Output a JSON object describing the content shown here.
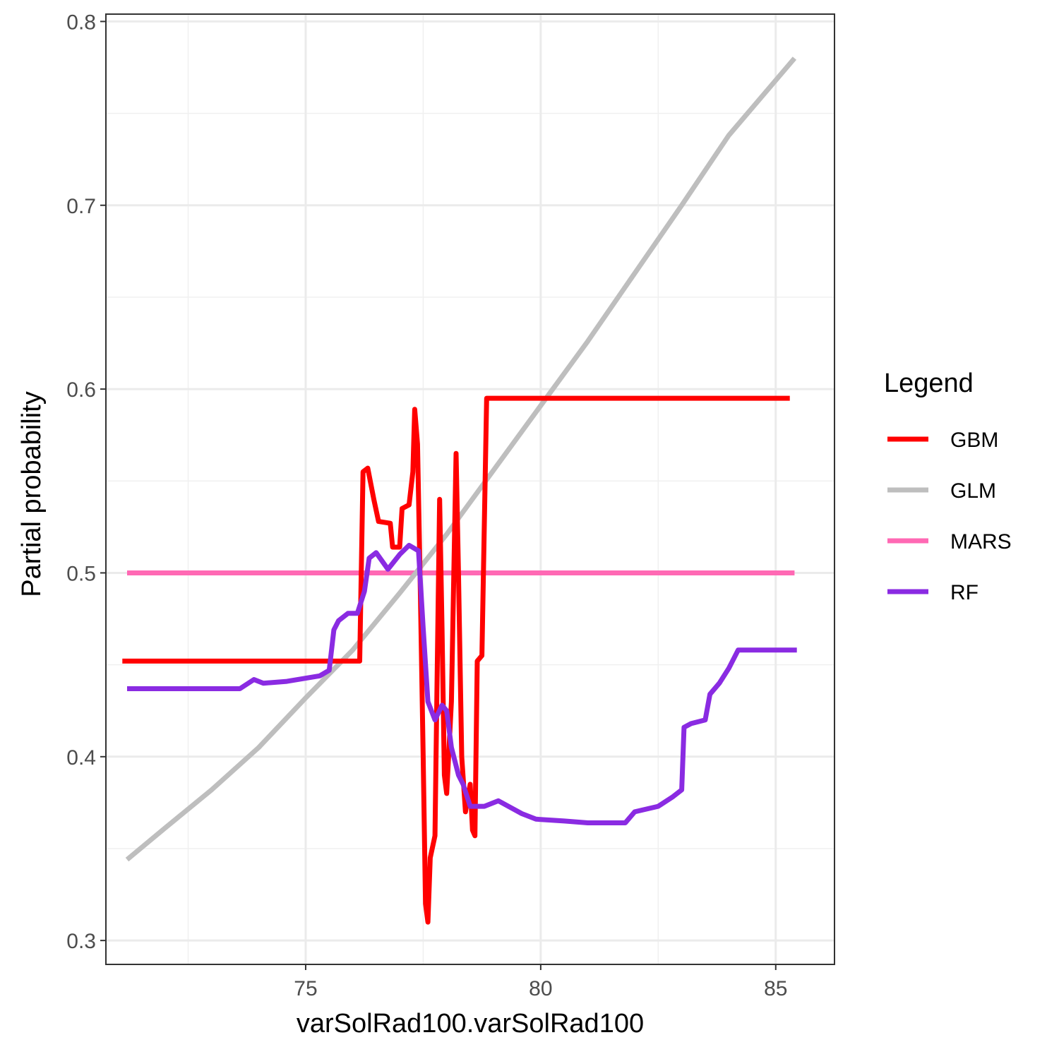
{
  "chart_data": {
    "type": "line",
    "title": "",
    "xlabel": "varSolRad100.varSolRad100",
    "ylabel": "Partial probability",
    "xlim": [
      70.75,
      86.25
    ],
    "ylim": [
      0.287,
      0.804
    ],
    "x_ticks": [
      75,
      80,
      85
    ],
    "x_tick_labels": [
      "75",
      "80",
      "85"
    ],
    "y_ticks": [
      0.3,
      0.4,
      0.5,
      0.6,
      0.7,
      0.8
    ],
    "y_tick_labels": [
      "0.3",
      "0.4",
      "0.5",
      "0.6",
      "0.7",
      "0.8"
    ],
    "grid": true,
    "legend": {
      "title": "Legend",
      "position": "right"
    },
    "series": [
      {
        "name": "GBM",
        "color": "#ff0000",
        "points": [
          [
            71.1,
            0.452
          ],
          [
            76.15,
            0.452
          ],
          [
            76.22,
            0.555
          ],
          [
            76.32,
            0.557
          ],
          [
            76.45,
            0.54
          ],
          [
            76.55,
            0.528
          ],
          [
            76.8,
            0.527
          ],
          [
            76.85,
            0.514
          ],
          [
            77.0,
            0.514
          ],
          [
            77.05,
            0.535
          ],
          [
            77.2,
            0.537
          ],
          [
            77.28,
            0.555
          ],
          [
            77.32,
            0.589
          ],
          [
            77.38,
            0.57
          ],
          [
            77.44,
            0.49
          ],
          [
            77.5,
            0.4
          ],
          [
            77.55,
            0.32
          ],
          [
            77.6,
            0.31
          ],
          [
            77.65,
            0.345
          ],
          [
            77.75,
            0.357
          ],
          [
            77.8,
            0.45
          ],
          [
            77.85,
            0.54
          ],
          [
            77.9,
            0.47
          ],
          [
            77.95,
            0.39
          ],
          [
            78.0,
            0.38
          ],
          [
            78.1,
            0.43
          ],
          [
            78.2,
            0.565
          ],
          [
            78.25,
            0.5
          ],
          [
            78.32,
            0.4
          ],
          [
            78.4,
            0.37
          ],
          [
            78.5,
            0.385
          ],
          [
            78.55,
            0.36
          ],
          [
            78.6,
            0.357
          ],
          [
            78.65,
            0.452
          ],
          [
            78.75,
            0.455
          ],
          [
            78.85,
            0.595
          ],
          [
            85.3,
            0.595
          ]
        ]
      },
      {
        "name": "GLM",
        "color": "#bebebe",
        "points": [
          [
            71.2,
            0.344
          ],
          [
            72.0,
            0.361
          ],
          [
            73.0,
            0.382
          ],
          [
            74.0,
            0.405
          ],
          [
            75.0,
            0.432
          ],
          [
            76.0,
            0.458
          ],
          [
            77.0,
            0.489
          ],
          [
            78.0,
            0.521
          ],
          [
            79.0,
            0.556
          ],
          [
            80.0,
            0.591
          ],
          [
            81.0,
            0.626
          ],
          [
            82.0,
            0.663
          ],
          [
            83.0,
            0.7
          ],
          [
            84.0,
            0.738
          ],
          [
            85.4,
            0.78
          ]
        ]
      },
      {
        "name": "MARS",
        "color": "#ff69b4",
        "points": [
          [
            71.2,
            0.5
          ],
          [
            85.4,
            0.5
          ]
        ]
      },
      {
        "name": "RF",
        "color": "#8a2be2",
        "points": [
          [
            71.2,
            0.437
          ],
          [
            73.6,
            0.437
          ],
          [
            73.9,
            0.442
          ],
          [
            74.1,
            0.44
          ],
          [
            74.6,
            0.441
          ],
          [
            75.3,
            0.444
          ],
          [
            75.5,
            0.447
          ],
          [
            75.6,
            0.469
          ],
          [
            75.7,
            0.474
          ],
          [
            75.9,
            0.478
          ],
          [
            76.1,
            0.478
          ],
          [
            76.25,
            0.49
          ],
          [
            76.35,
            0.508
          ],
          [
            76.5,
            0.511
          ],
          [
            76.75,
            0.502
          ],
          [
            77.0,
            0.51
          ],
          [
            77.2,
            0.515
          ],
          [
            77.4,
            0.512
          ],
          [
            77.5,
            0.47
          ],
          [
            77.6,
            0.43
          ],
          [
            77.75,
            0.42
          ],
          [
            77.9,
            0.428
          ],
          [
            78.0,
            0.425
          ],
          [
            78.1,
            0.405
          ],
          [
            78.25,
            0.39
          ],
          [
            78.35,
            0.385
          ],
          [
            78.5,
            0.373
          ],
          [
            78.8,
            0.373
          ],
          [
            79.1,
            0.376
          ],
          [
            79.6,
            0.369
          ],
          [
            79.9,
            0.366
          ],
          [
            80.5,
            0.365
          ],
          [
            81.0,
            0.364
          ],
          [
            81.8,
            0.364
          ],
          [
            82.0,
            0.37
          ],
          [
            82.5,
            0.373
          ],
          [
            82.8,
            0.378
          ],
          [
            83.0,
            0.382
          ],
          [
            83.05,
            0.416
          ],
          [
            83.2,
            0.418
          ],
          [
            83.5,
            0.42
          ],
          [
            83.6,
            0.434
          ],
          [
            83.8,
            0.44
          ],
          [
            84.0,
            0.448
          ],
          [
            84.2,
            0.458
          ],
          [
            85.45,
            0.458
          ]
        ]
      }
    ]
  }
}
